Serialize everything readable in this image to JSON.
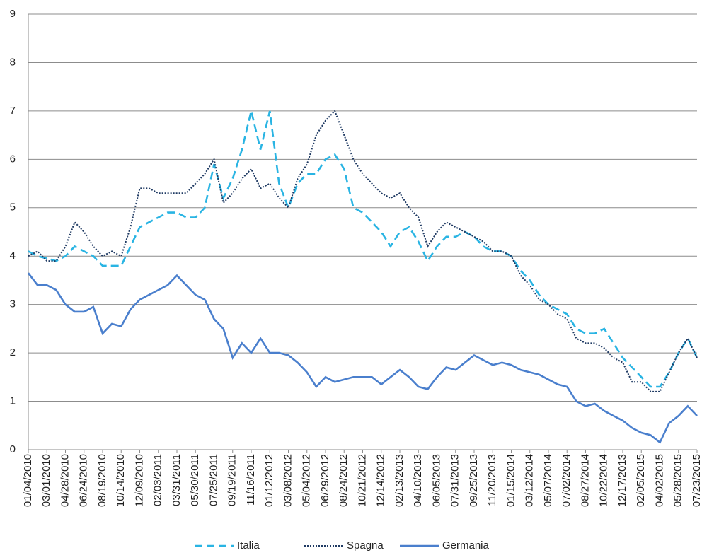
{
  "chart_data": {
    "type": "line",
    "categories": [
      "01/04/2010",
      null,
      "03/01/2010",
      null,
      "04/28/2010",
      null,
      "06/24/2010",
      null,
      "08/19/2010",
      null,
      "10/14/2010",
      null,
      "12/09/2010",
      null,
      "02/03/2011",
      null,
      "03/31/2011",
      null,
      "05/30/2011",
      null,
      "07/25/2011",
      null,
      "09/19/2011",
      null,
      "11/16/2011",
      null,
      "01/12/2012",
      null,
      "03/08/2012",
      null,
      "05/04/2012",
      null,
      "06/29/2012",
      null,
      "08/24/2012",
      null,
      "10/21/2012",
      null,
      "12/14/2012",
      null,
      "02/13/2013",
      null,
      "04/10/2013",
      null,
      "06/05/2013",
      null,
      "07/31/2013",
      null,
      "09/25/2013",
      null,
      "11/20/2013",
      null,
      "01/15/2014",
      null,
      "03/12/2014",
      null,
      "05/07/2014",
      null,
      "07/02/2014",
      null,
      "08/27/2014",
      null,
      "10/22/2014",
      null,
      "12/17/2013",
      null,
      "02/05/2015",
      null,
      "04/02/2015",
      null,
      "05/28/2015",
      null,
      "07/23/2015"
    ],
    "series": [
      {
        "name": "Italia",
        "color": "#29b4e3",
        "dash": "dashed",
        "values": [
          4.1,
          4.0,
          3.95,
          3.9,
          4.0,
          4.2,
          4.1,
          4.0,
          3.8,
          3.8,
          3.8,
          4.2,
          4.6,
          4.7,
          4.8,
          4.9,
          4.9,
          4.8,
          4.8,
          5.0,
          5.9,
          5.2,
          5.6,
          6.2,
          7.0,
          6.2,
          7.0,
          5.5,
          5.0,
          5.5,
          5.7,
          5.7,
          6.0,
          6.1,
          5.8,
          5.0,
          4.9,
          4.7,
          4.5,
          4.2,
          4.5,
          4.6,
          4.3,
          3.9,
          4.2,
          4.4,
          4.4,
          4.5,
          4.4,
          4.2,
          4.1,
          4.1,
          4.0,
          3.7,
          3.5,
          3.2,
          3.0,
          2.9,
          2.8,
          2.5,
          2.4,
          2.4,
          2.5,
          2.2,
          1.9,
          1.7,
          1.5,
          1.3,
          1.3,
          1.6,
          2.0,
          2.3,
          1.9
        ]
      },
      {
        "name": "Spagna",
        "color": "#1f3a63",
        "dash": "dotted",
        "values": [
          4.0,
          4.1,
          3.9,
          3.9,
          4.2,
          4.7,
          4.5,
          4.2,
          4.0,
          4.1,
          4.0,
          4.6,
          5.4,
          5.4,
          5.3,
          5.3,
          5.3,
          5.3,
          5.5,
          5.7,
          6.0,
          5.1,
          5.3,
          5.6,
          5.8,
          5.4,
          5.5,
          5.2,
          5.0,
          5.6,
          5.9,
          6.5,
          6.8,
          7.0,
          6.5,
          6.0,
          5.7,
          5.5,
          5.3,
          5.2,
          5.3,
          5.0,
          4.8,
          4.2,
          4.5,
          4.7,
          4.6,
          4.5,
          4.4,
          4.3,
          4.1,
          4.1,
          4.0,
          3.6,
          3.4,
          3.1,
          3.0,
          2.8,
          2.7,
          2.3,
          2.2,
          2.2,
          2.1,
          1.9,
          1.8,
          1.4,
          1.4,
          1.2,
          1.2,
          1.6,
          2.0,
          2.3,
          1.9
        ]
      },
      {
        "name": "Germania",
        "color": "#4a7fcd",
        "dash": "solid",
        "values": [
          3.65,
          3.4,
          3.4,
          3.3,
          3.0,
          2.85,
          2.85,
          2.95,
          2.4,
          2.6,
          2.55,
          2.9,
          3.1,
          3.2,
          3.3,
          3.4,
          3.6,
          3.4,
          3.2,
          3.1,
          2.7,
          2.5,
          1.9,
          2.2,
          2.0,
          2.3,
          2.0,
          2.0,
          1.95,
          1.8,
          1.6,
          1.3,
          1.5,
          1.4,
          1.45,
          1.5,
          1.5,
          1.5,
          1.35,
          1.5,
          1.65,
          1.5,
          1.3,
          1.25,
          1.5,
          1.7,
          1.65,
          1.8,
          1.95,
          1.85,
          1.75,
          1.8,
          1.75,
          1.65,
          1.6,
          1.55,
          1.45,
          1.35,
          1.3,
          1.0,
          0.9,
          0.95,
          0.8,
          0.7,
          0.6,
          0.45,
          0.35,
          0.3,
          0.15,
          0.55,
          0.7,
          0.9,
          0.7
        ]
      }
    ],
    "ylim": [
      0,
      9
    ],
    "yticks": [
      0,
      1,
      2,
      3,
      4,
      5,
      6,
      7,
      8,
      9
    ],
    "grid": true,
    "legend": "bottom"
  }
}
